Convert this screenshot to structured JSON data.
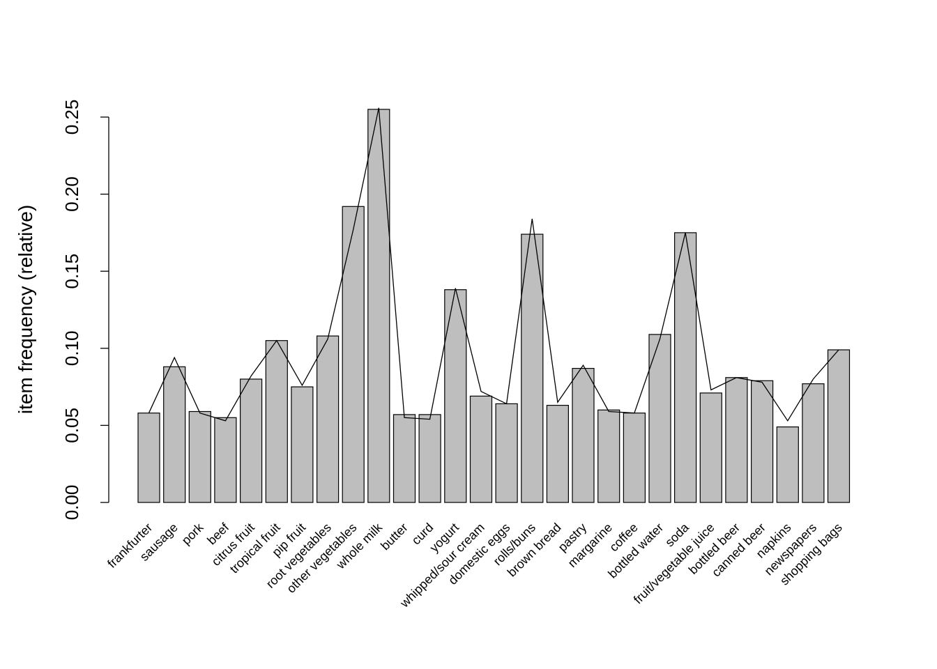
{
  "chart_data": {
    "type": "bar",
    "ylabel": "item frequency (relative)",
    "ylim": [
      0,
      0.25
    ],
    "yticks": [
      "0.00",
      "0.05",
      "0.10",
      "0.15",
      "0.20",
      "0.25"
    ],
    "categories": [
      "frankfurter",
      "sausage",
      "pork",
      "beef",
      "citrus fruit",
      "tropical fruit",
      "pip fruit",
      "root vegetables",
      "other vegetables",
      "whole milk",
      "butter",
      "curd",
      "yogurt",
      "whipped/sour cream",
      "domestic eggs",
      "rolls/buns",
      "brown bread",
      "pastry",
      "margarine",
      "coffee",
      "bottled water",
      "soda",
      "fruit/vegetable juice",
      "bottled beer",
      "canned beer",
      "napkins",
      "newspapers",
      "shopping bags"
    ],
    "series": [
      {
        "type": "bar",
        "values": [
          0.058,
          0.088,
          0.059,
          0.055,
          0.08,
          0.105,
          0.075,
          0.108,
          0.192,
          0.255,
          0.057,
          0.057,
          0.138,
          0.069,
          0.064,
          0.174,
          0.063,
          0.087,
          0.06,
          0.058,
          0.109,
          0.175,
          0.071,
          0.081,
          0.079,
          0.049,
          0.077,
          0.099
        ]
      },
      {
        "type": "line",
        "values": [
          0.058,
          0.094,
          0.058,
          0.053,
          0.082,
          0.105,
          0.076,
          0.106,
          0.177,
          0.256,
          0.055,
          0.054,
          0.139,
          0.072,
          0.064,
          0.184,
          0.065,
          0.089,
          0.059,
          0.058,
          0.106,
          0.175,
          0.073,
          0.081,
          0.078,
          0.053,
          0.08,
          0.099
        ]
      }
    ],
    "colors": {
      "bar_fill": "#bebebe",
      "bar_stroke": "#000000",
      "line": "#000000"
    },
    "grid": false,
    "legend": false
  }
}
